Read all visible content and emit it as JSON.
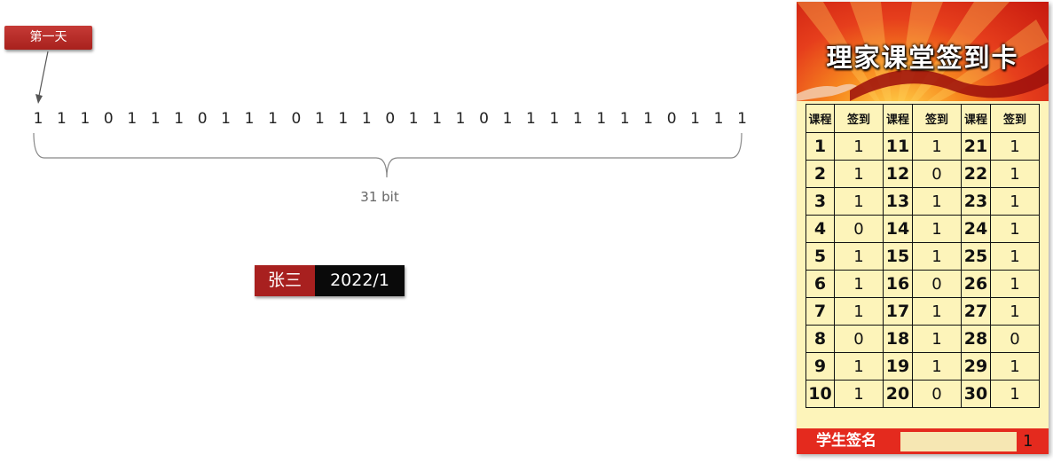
{
  "day_label": "第一天",
  "bits": [
    "1",
    "1",
    "1",
    "0",
    "1",
    "1",
    "1",
    "0",
    "1",
    "1",
    "1",
    "0",
    "1",
    "1",
    "1",
    "0",
    "1",
    "1",
    "1",
    "0",
    "1",
    "1",
    "1",
    "1",
    "1",
    "1",
    "1",
    "0",
    "1",
    "1",
    "1"
  ],
  "bits_caption": "31 bit",
  "user": {
    "name": "张三",
    "month": "2022/1"
  },
  "card": {
    "title": "理家课堂签到卡",
    "headers": [
      "课程",
      "签到",
      "课程",
      "签到",
      "课程",
      "签到"
    ],
    "rows": [
      [
        [
          "1",
          "1"
        ],
        [
          "11",
          "1"
        ],
        [
          "21",
          "1"
        ]
      ],
      [
        [
          "2",
          "1"
        ],
        [
          "12",
          "0"
        ],
        [
          "22",
          "1"
        ]
      ],
      [
        [
          "3",
          "1"
        ],
        [
          "13",
          "1"
        ],
        [
          "23",
          "1"
        ]
      ],
      [
        [
          "4",
          "0"
        ],
        [
          "14",
          "1"
        ],
        [
          "24",
          "1"
        ]
      ],
      [
        [
          "5",
          "1"
        ],
        [
          "15",
          "1"
        ],
        [
          "25",
          "1"
        ]
      ],
      [
        [
          "6",
          "1"
        ],
        [
          "16",
          "0"
        ],
        [
          "26",
          "1"
        ]
      ],
      [
        [
          "7",
          "1"
        ],
        [
          "17",
          "1"
        ],
        [
          "27",
          "1"
        ]
      ],
      [
        [
          "8",
          "0"
        ],
        [
          "18",
          "1"
        ],
        [
          "28",
          "0"
        ]
      ],
      [
        [
          "9",
          "1"
        ],
        [
          "19",
          "1"
        ],
        [
          "29",
          "1"
        ]
      ],
      [
        [
          "10",
          "1"
        ],
        [
          "20",
          "0"
        ],
        [
          "30",
          "1"
        ]
      ]
    ],
    "footer_label": "学生签名",
    "footer_value": "1"
  },
  "colors": {
    "accent_red": "#a8201f",
    "card_bg": "#fdf4ba",
    "footer_red": "#e42a1e"
  }
}
